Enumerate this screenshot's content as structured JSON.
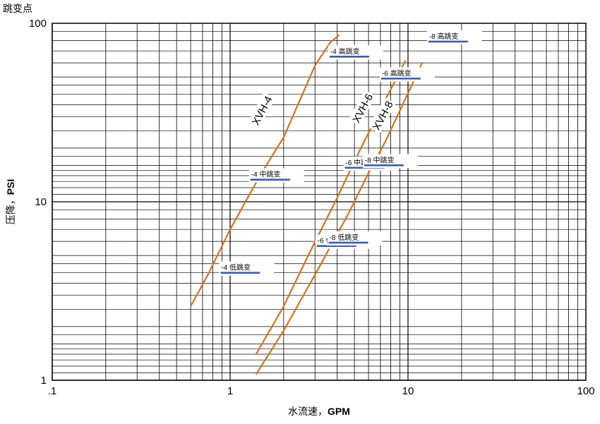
{
  "chart_data": {
    "type": "line",
    "corner_label": "跳变点",
    "xlabel_cn": "水流速，",
    "xlabel_unit": "GPM",
    "ylabel_cn": "压降，",
    "ylabel_unit": "PSI",
    "x_scale": "log",
    "y_scale": "log",
    "xlim": [
      0.1,
      100
    ],
    "ylim": [
      1,
      100
    ],
    "x_ticks": [
      {
        "value": 0.1,
        "label": ".1"
      },
      {
        "value": 1,
        "label": "1"
      },
      {
        "value": 10,
        "label": "10"
      },
      {
        "value": 100,
        "label": "100"
      }
    ],
    "y_ticks": [
      {
        "value": 1,
        "label": "1"
      },
      {
        "value": 10,
        "label": "10"
      },
      {
        "value": 100,
        "label": "100"
      }
    ],
    "grid": true,
    "line_color": "#d4731e",
    "marker_color": "#3a5fa8",
    "series": [
      {
        "name": "XVH-4",
        "label_at": [
          1.55,
          32
        ],
        "points": [
          [
            0.6,
            2.6
          ],
          [
            0.75,
            3.9
          ],
          [
            1.0,
            7.0
          ],
          [
            1.5,
            14.5
          ],
          [
            2.0,
            23
          ],
          [
            3.0,
            58
          ],
          [
            3.65,
            78
          ],
          [
            4.1,
            86
          ]
        ]
      },
      {
        "name": "XVH-6",
        "label_at": [
          5.7,
          33
        ],
        "points": [
          [
            1.4,
            1.4
          ],
          [
            2.0,
            2.6
          ],
          [
            2.8,
            5.2
          ],
          [
            3.9,
            10
          ],
          [
            5.3,
            19
          ],
          [
            7.0,
            33
          ],
          [
            9.7,
            62
          ]
        ]
      },
      {
        "name": "XVH-8",
        "label_at": [
          7.4,
          30
        ],
        "points": [
          [
            1.4,
            1.08
          ],
          [
            2.0,
            1.9
          ],
          [
            3.0,
            3.9
          ],
          [
            4.6,
            8.5
          ],
          [
            6.0,
            14.5
          ],
          [
            7.5,
            22
          ],
          [
            9.7,
            38
          ],
          [
            12.0,
            60
          ]
        ]
      }
    ],
    "markers": [
      {
        "label": "-4  低跳变",
        "x": 0.95,
        "y": 4.0
      },
      {
        "label": "-4  中跳变",
        "x": 1.4,
        "y": 13.3
      },
      {
        "label": "-4  高跳变",
        "x": 3.9,
        "y": 65
      },
      {
        "label": "-6  低跳变",
        "x": 3.3,
        "y": 5.65
      },
      {
        "label": "-6  中跳变",
        "x": 4.75,
        "y": 15.5
      },
      {
        "label": "-6  高跳变",
        "x": 7.6,
        "y": 49
      },
      {
        "label": "-8  低跳变",
        "x": 3.85,
        "y": 5.9
      },
      {
        "label": "-8  中跳变",
        "x": 6.1,
        "y": 16.0
      },
      {
        "label": "-8  高跳变",
        "x": 14.0,
        "y": 79
      }
    ]
  }
}
